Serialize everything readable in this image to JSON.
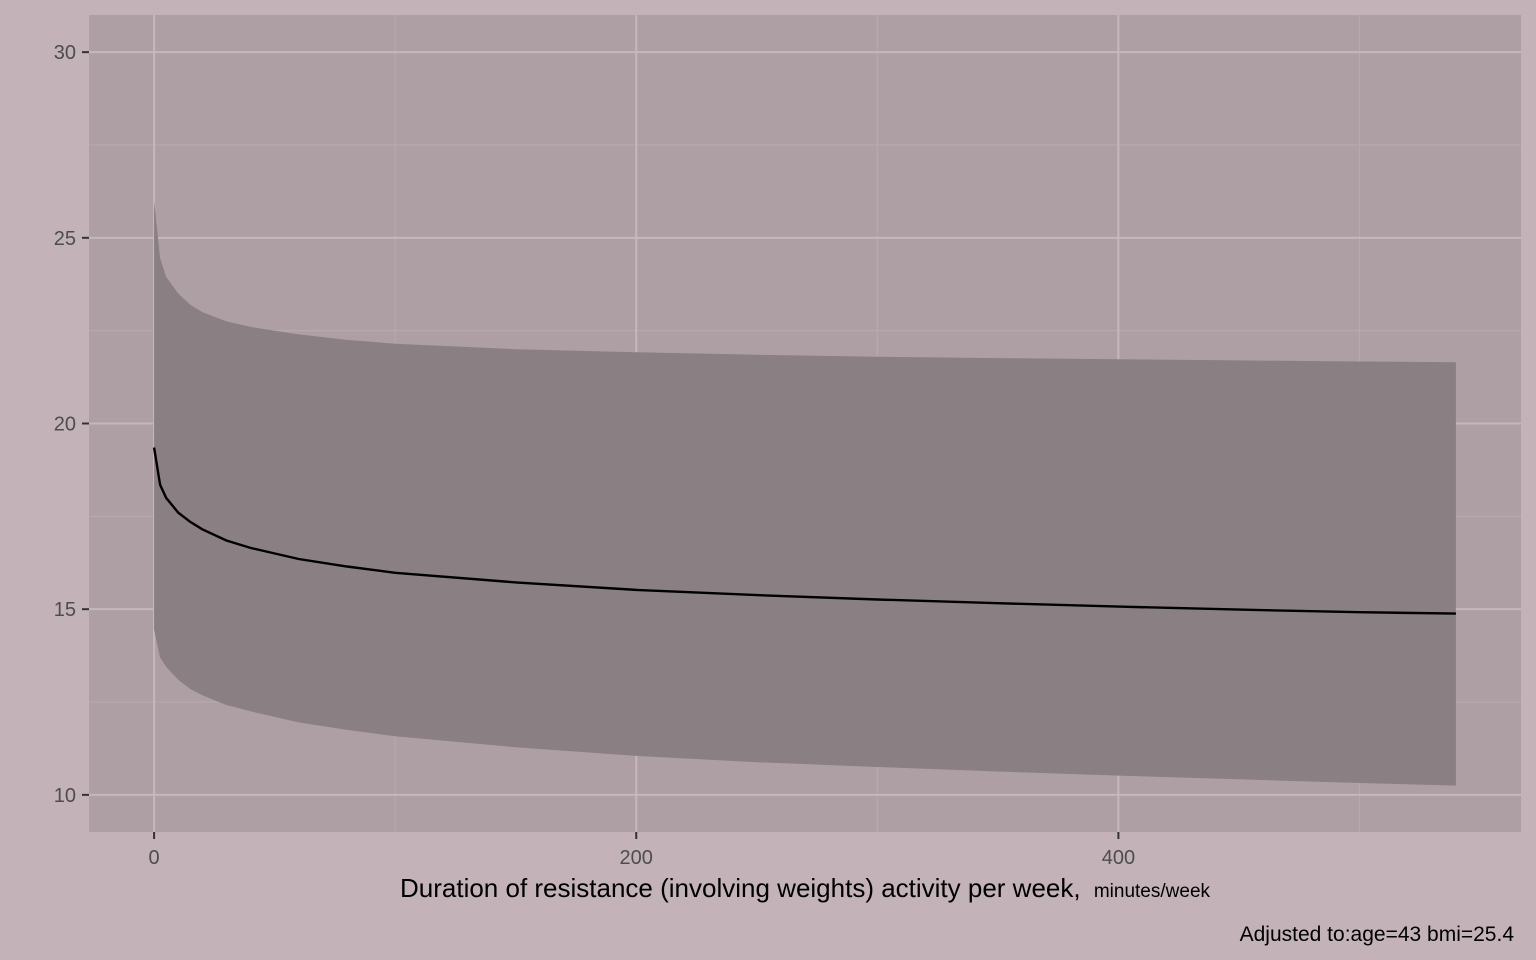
{
  "chart_data": {
    "type": "line",
    "title": "",
    "xlabel": "Duration of resistance (involving weights) activity per week,",
    "xlabel_unit": "minutes/week",
    "ylabel": "",
    "caption": "Adjusted to:age=43 bmi=25.4",
    "xlim": [
      -27,
      567
    ],
    "ylim": [
      9.0,
      31.0
    ],
    "x_ticks": [
      0,
      200,
      400
    ],
    "x_tick_labels": [
      "0",
      "200",
      "400"
    ],
    "y_ticks": [
      10,
      15,
      20,
      25,
      30
    ],
    "y_tick_labels": [
      "10",
      "15",
      "20",
      "25",
      "30"
    ],
    "grid": true,
    "legend": "none",
    "colors": {
      "background": "#c3b3b9",
      "panel": "#ae9fa4",
      "grid_major": "#c7b7bd",
      "grid_minor": "#b8a9ae",
      "ribbon": "#8a7f83",
      "line": "#000000"
    },
    "series": [
      {
        "x": [
          0,
          2.5,
          5,
          10,
          15,
          20,
          30,
          40,
          60,
          80,
          100,
          150,
          200,
          250,
          300,
          350,
          400,
          450,
          500,
          540
        ],
        "y": [
          19.35,
          18.35,
          18.0,
          17.6,
          17.35,
          17.15,
          16.85,
          16.65,
          16.35,
          16.15,
          15.98,
          15.72,
          15.52,
          15.38,
          15.26,
          15.16,
          15.07,
          14.99,
          14.92,
          14.88
        ],
        "lower": [
          14.45,
          13.7,
          13.45,
          13.1,
          12.85,
          12.68,
          12.42,
          12.25,
          11.95,
          11.75,
          11.58,
          11.28,
          11.05,
          10.88,
          10.75,
          10.63,
          10.52,
          10.42,
          10.32,
          10.25
        ],
        "upper": [
          26.0,
          24.45,
          23.95,
          23.5,
          23.2,
          23.0,
          22.75,
          22.6,
          22.4,
          22.25,
          22.15,
          22.0,
          21.92,
          21.85,
          21.8,
          21.76,
          21.73,
          21.7,
          21.67,
          21.65
        ]
      }
    ]
  }
}
